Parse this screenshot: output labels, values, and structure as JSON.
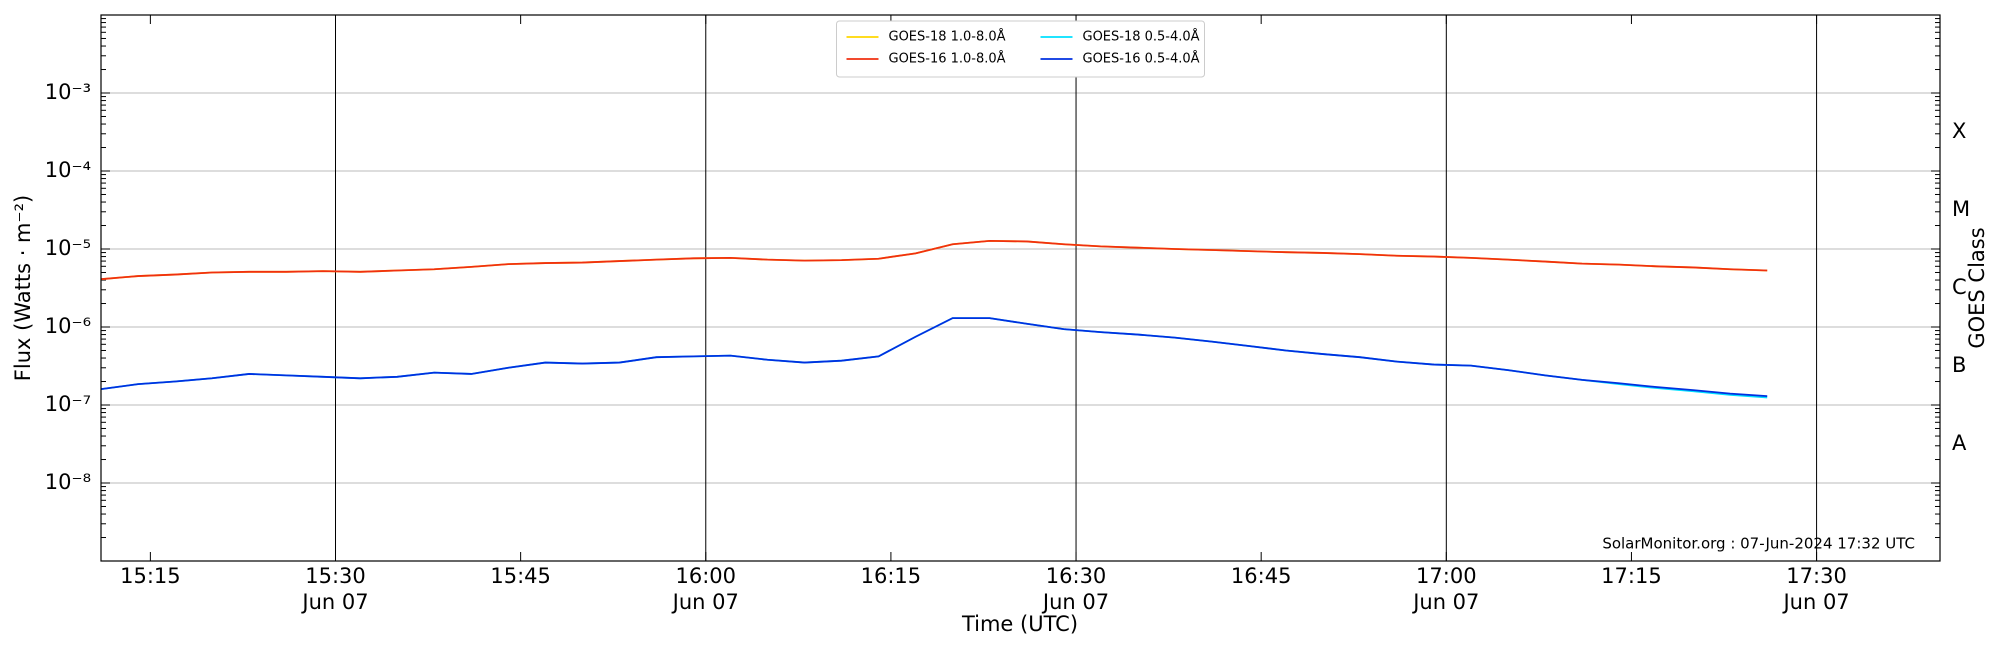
{
  "chart_data": {
    "type": "line",
    "xlabel": "Time (UTC)",
    "ylabel": "Flux (Watts · m⁻²)",
    "y2label": "GOES Class",
    "footer": "SolarMonitor.org : 07-Jun-2024 17:32 UTC",
    "log_y": true,
    "grid": true,
    "legend": "upper center",
    "xlim": [
      "15:11",
      "17:40"
    ],
    "ylim": [
      1e-09,
      0.01
    ],
    "xticks": [
      "15:15",
      {
        "value": "15:30",
        "label": "15:30\nJun 07"
      },
      "15:45",
      {
        "value": "16:00",
        "label": "16:00\nJun 07"
      },
      "16:15",
      {
        "value": "16:30",
        "label": "16:30\nJun 07"
      },
      "16:45",
      {
        "value": "17:00",
        "label": "17:00\nJun 07"
      },
      "17:15",
      {
        "value": "17:30",
        "label": "17:30\nJun 07"
      }
    ],
    "yticks": [
      {
        "value": 1e-08,
        "label": "10⁻⁸"
      },
      {
        "value": 1e-07,
        "label": "10⁻⁷"
      },
      {
        "value": 1e-06,
        "label": "10⁻⁶"
      },
      {
        "value": 1e-05,
        "label": "10⁻⁵"
      },
      {
        "value": 0.0001,
        "label": "10⁻⁴"
      },
      {
        "value": 0.001,
        "label": "10⁻³"
      }
    ],
    "goes_classes": [
      {
        "label": "A",
        "min": 1e-08
      },
      {
        "label": "B",
        "min": 1e-07
      },
      {
        "label": "C",
        "min": 1e-06
      },
      {
        "label": "M",
        "min": 1e-05
      },
      {
        "label": "X",
        "min": 0.0001
      }
    ],
    "x": [
      "15:11",
      "15:14",
      "15:17",
      "15:20",
      "15:23",
      "15:26",
      "15:29",
      "15:32",
      "15:35",
      "15:38",
      "15:41",
      "15:44",
      "15:47",
      "15:50",
      "15:53",
      "15:56",
      "15:59",
      "16:02",
      "16:05",
      "16:08",
      "16:11",
      "16:14",
      "16:17",
      "16:20",
      "16:23",
      "16:26",
      "16:29",
      "16:32",
      "16:35",
      "16:38",
      "16:41",
      "16:44",
      "16:47",
      "16:50",
      "16:53",
      "16:56",
      "16:59",
      "17:02",
      "17:05",
      "17:08",
      "17:11",
      "17:14",
      "17:17",
      "17:20",
      "17:23",
      "17:26"
    ],
    "series": [
      {
        "name": "GOES-18 1.0-8.0Å",
        "color": "#ffd700",
        "values": [
          4.1e-06,
          4.5e-06,
          4.7e-06,
          5e-06,
          5.1e-06,
          5.1e-06,
          5.2e-06,
          5.1e-06,
          5.3e-06,
          5.5e-06,
          5.9e-06,
          6.4e-06,
          6.6e-06,
          6.7e-06,
          7e-06,
          7.3e-06,
          7.6e-06,
          7.7e-06,
          7.3e-06,
          7.1e-06,
          7.2e-06,
          7.5e-06,
          8.8e-06,
          1.15e-05,
          1.27e-05,
          1.25e-05,
          1.15e-05,
          1.08e-05,
          1.04e-05,
          1e-05,
          9.7e-06,
          9.4e-06,
          9.1e-06,
          8.9e-06,
          8.6e-06,
          8.2e-06,
          8e-06,
          7.7e-06,
          7.3e-06,
          6.9e-06,
          6.5e-06,
          6.3e-06,
          6e-06,
          5.8e-06,
          5.5e-06,
          5.3e-06
        ]
      },
      {
        "name": "GOES-16 1.0-8.0Å",
        "color": "#f03010",
        "values": [
          4.1e-06,
          4.5e-06,
          4.7e-06,
          5e-06,
          5.1e-06,
          5.1e-06,
          5.2e-06,
          5.1e-06,
          5.3e-06,
          5.5e-06,
          5.9e-06,
          6.4e-06,
          6.6e-06,
          6.7e-06,
          7e-06,
          7.3e-06,
          7.6e-06,
          7.7e-06,
          7.3e-06,
          7.1e-06,
          7.2e-06,
          7.5e-06,
          8.8e-06,
          1.15e-05,
          1.27e-05,
          1.25e-05,
          1.15e-05,
          1.08e-05,
          1.04e-05,
          1e-05,
          9.7e-06,
          9.4e-06,
          9.1e-06,
          8.9e-06,
          8.6e-06,
          8.2e-06,
          8e-06,
          7.7e-06,
          7.3e-06,
          6.9e-06,
          6.5e-06,
          6.3e-06,
          6e-06,
          5.8e-06,
          5.5e-06,
          5.3e-06
        ]
      },
      {
        "name": "GOES-18 0.5-4.0Å",
        "color": "#00e0ff",
        "values": [
          1.6e-07,
          1.85e-07,
          2e-07,
          2.2e-07,
          2.5e-07,
          2.4e-07,
          2.3e-07,
          2.2e-07,
          2.3e-07,
          2.6e-07,
          2.5e-07,
          3e-07,
          3.5e-07,
          3.4e-07,
          3.5e-07,
          4.1e-07,
          4.2e-07,
          4.3e-07,
          3.8e-07,
          3.5e-07,
          3.7e-07,
          4.2e-07,
          7.5e-07,
          1.3e-06,
          1.3e-06,
          1.1e-06,
          9.4e-07,
          8.6e-07,
          8e-07,
          7.3e-07,
          6.5e-07,
          5.7e-07,
          5e-07,
          4.5e-07,
          4.1e-07,
          3.6e-07,
          3.3e-07,
          3.2e-07,
          2.8e-07,
          2.4e-07,
          2.1e-07,
          1.85e-07,
          1.65e-07,
          1.5e-07,
          1.35e-07,
          1.25e-07
        ]
      },
      {
        "name": "GOES-16 0.5-4.0Å",
        "color": "#0030e0",
        "values": [
          1.6e-07,
          1.85e-07,
          2e-07,
          2.2e-07,
          2.5e-07,
          2.4e-07,
          2.3e-07,
          2.2e-07,
          2.3e-07,
          2.6e-07,
          2.5e-07,
          3e-07,
          3.5e-07,
          3.4e-07,
          3.5e-07,
          4.1e-07,
          4.2e-07,
          4.3e-07,
          3.8e-07,
          3.5e-07,
          3.7e-07,
          4.2e-07,
          7.5e-07,
          1.3e-06,
          1.3e-06,
          1.1e-06,
          9.4e-07,
          8.6e-07,
          8e-07,
          7.3e-07,
          6.5e-07,
          5.7e-07,
          5e-07,
          4.5e-07,
          4.1e-07,
          3.6e-07,
          3.3e-07,
          3.2e-07,
          2.8e-07,
          2.4e-07,
          2.1e-07,
          1.9e-07,
          1.7e-07,
          1.55e-07,
          1.4e-07,
          1.3e-07
        ]
      }
    ]
  }
}
